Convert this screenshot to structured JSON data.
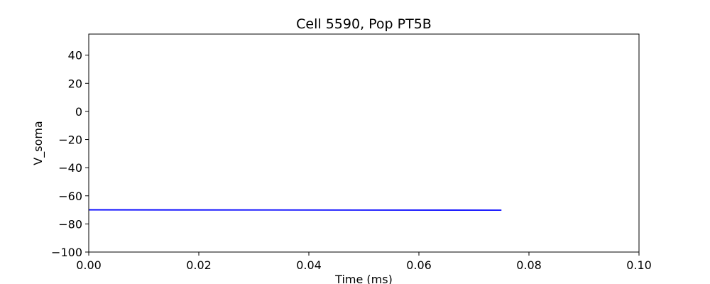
{
  "chart_data": {
    "type": "line",
    "title": "Cell 5590, Pop PT5B",
    "xlabel": "Time (ms)",
    "ylabel": "V_soma",
    "xlim": [
      0.0,
      0.1
    ],
    "ylim": [
      -100,
      55
    ],
    "xticks": [
      0.0,
      0.02,
      0.04,
      0.06,
      0.08,
      0.1
    ],
    "xtick_labels": [
      "0.00",
      "0.02",
      "0.04",
      "0.06",
      "0.08",
      "0.10"
    ],
    "yticks": [
      -100,
      -80,
      -60,
      -40,
      -20,
      0,
      20,
      40
    ],
    "ytick_labels": [
      "−100",
      "−80",
      "−60",
      "−40",
      "−20",
      "0",
      "20",
      "40"
    ],
    "grid": false,
    "series": [
      {
        "color": "#0000ff",
        "x": [
          0.0,
          0.075
        ],
        "y": [
          -70.0,
          -70.2
        ]
      }
    ]
  }
}
